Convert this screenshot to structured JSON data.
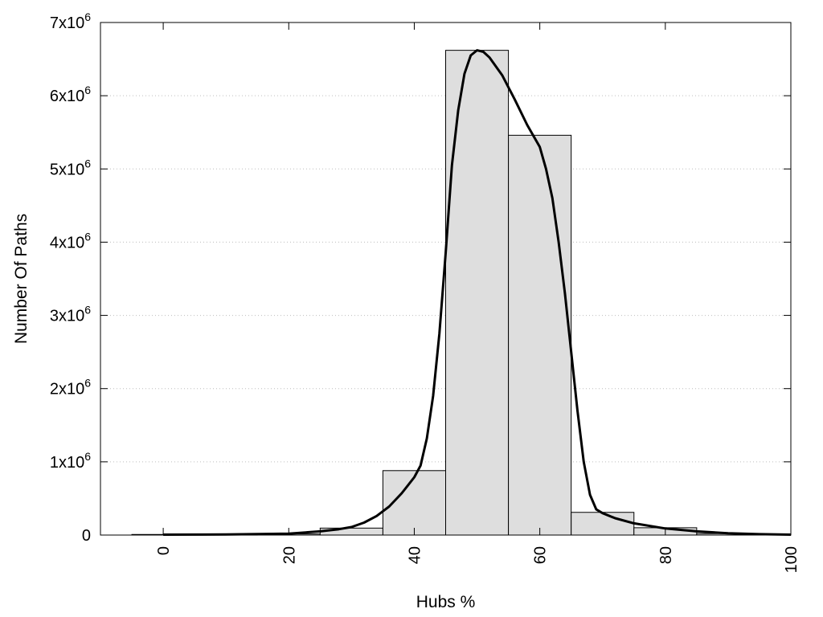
{
  "chart_data": {
    "type": "bar",
    "title": "",
    "xlabel": "Hubs %",
    "ylabel": "Number Of Paths",
    "xlim": [
      -10,
      100
    ],
    "ylim": [
      0,
      7000000
    ],
    "x_ticks": [
      0,
      20,
      40,
      60,
      80,
      100
    ],
    "y_ticks": [
      {
        "value": 0,
        "base": "0",
        "exp": ""
      },
      {
        "value": 1000000,
        "base": "1x10",
        "exp": "6"
      },
      {
        "value": 2000000,
        "base": "2x10",
        "exp": "6"
      },
      {
        "value": 3000000,
        "base": "3x10",
        "exp": "6"
      },
      {
        "value": 4000000,
        "base": "4x10",
        "exp": "6"
      },
      {
        "value": 5000000,
        "base": "5x10",
        "exp": "6"
      },
      {
        "value": 6000000,
        "base": "6x10",
        "exp": "6"
      },
      {
        "value": 7000000,
        "base": "7x10",
        "exp": "6"
      }
    ],
    "grid": "horizontal dotted",
    "bin_width": 10,
    "bars": [
      {
        "x": 0,
        "value": 8000
      },
      {
        "x": 10,
        "value": 5000
      },
      {
        "x": 20,
        "value": 15000
      },
      {
        "x": 30,
        "value": 95000
      },
      {
        "x": 40,
        "value": 880000
      },
      {
        "x": 50,
        "value": 6620000
      },
      {
        "x": 60,
        "value": 5460000
      },
      {
        "x": 70,
        "value": 310000
      },
      {
        "x": 80,
        "value": 100000
      },
      {
        "x": 90,
        "value": 20000
      }
    ],
    "curve": {
      "x": [
        0,
        10,
        20,
        25,
        28,
        30,
        32,
        34,
        36,
        38,
        40,
        41,
        42,
        43,
        44,
        45,
        46,
        47,
        48,
        49,
        50,
        51,
        52,
        54,
        56,
        58,
        60,
        61,
        62,
        63,
        64,
        65,
        66,
        67,
        68,
        69,
        70,
        72,
        75,
        80,
        85,
        90,
        95,
        100
      ],
      "y": [
        5000,
        8000,
        20000,
        50000,
        80000,
        110000,
        170000,
        260000,
        390000,
        570000,
        790000,
        950000,
        1320000,
        1900000,
        2750000,
        3850000,
        5050000,
        5800000,
        6300000,
        6550000,
        6620000,
        6600000,
        6520000,
        6280000,
        5950000,
        5600000,
        5300000,
        5000000,
        4600000,
        4000000,
        3300000,
        2500000,
        1700000,
        1000000,
        550000,
        350000,
        300000,
        230000,
        160000,
        90000,
        50000,
        25000,
        12000,
        5000
      ]
    },
    "bar_fill": "#dedede",
    "bar_stroke": "#000000",
    "curve_color": "#000000"
  }
}
